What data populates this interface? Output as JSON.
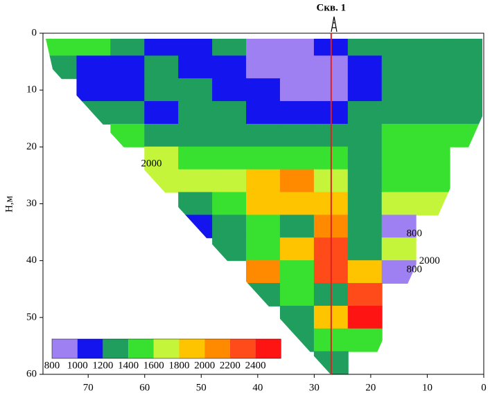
{
  "chart_data": {
    "type": "heatmap",
    "ylabel": "H,м",
    "xlim": [
      78,
      0
    ],
    "ylim": [
      0,
      60
    ],
    "y_inverted": true,
    "xticks": [
      70,
      60,
      50,
      40,
      30,
      20,
      10,
      0
    ],
    "yticks": [
      0,
      10,
      20,
      30,
      40,
      50,
      60
    ],
    "cell_size": [
      6,
      4
    ],
    "x": [
      75,
      69,
      63,
      57,
      51,
      45,
      39,
      33,
      27,
      21,
      15,
      9,
      3
    ],
    "y": [
      2,
      6,
      10,
      14,
      18,
      22,
      26,
      30,
      34,
      38,
      42,
      46,
      50,
      54,
      58
    ],
    "z": [
      [
        1450,
        1450,
        1300,
        1100,
        1100,
        1300,
        900,
        900,
        1100,
        1300,
        1300,
        1300,
        1300
      ],
      [
        1300,
        1100,
        1100,
        1300,
        1100,
        1100,
        900,
        900,
        900,
        1100,
        1300,
        1300,
        1300
      ],
      [
        null,
        1100,
        1100,
        1300,
        1300,
        1100,
        1100,
        900,
        900,
        1100,
        1300,
        1300,
        1300
      ],
      [
        null,
        1300,
        1300,
        1100,
        1300,
        1300,
        1100,
        1100,
        1100,
        1300,
        1300,
        1300,
        1300
      ],
      [
        null,
        null,
        1500,
        1300,
        1300,
        1300,
        1300,
        1300,
        1300,
        1300,
        1500,
        1500,
        1500
      ],
      [
        null,
        null,
        null,
        1700,
        1500,
        1500,
        1500,
        1500,
        1500,
        1300,
        1500,
        1500,
        null
      ],
      [
        null,
        null,
        null,
        1700,
        1700,
        1700,
        1900,
        2100,
        1700,
        1300,
        1500,
        1500,
        null
      ],
      [
        null,
        null,
        null,
        null,
        1300,
        1500,
        1900,
        1900,
        1900,
        1300,
        1700,
        1700,
        null
      ],
      [
        null,
        null,
        null,
        null,
        1100,
        1300,
        1500,
        1300,
        2100,
        1300,
        900,
        null,
        null
      ],
      [
        null,
        null,
        null,
        null,
        null,
        1300,
        1500,
        1900,
        2300,
        1300,
        1700,
        null,
        null
      ],
      [
        null,
        null,
        null,
        null,
        null,
        null,
        2100,
        1500,
        2300,
        1900,
        900,
        null,
        null
      ],
      [
        null,
        null,
        null,
        null,
        null,
        null,
        1300,
        1500,
        1300,
        2300,
        null,
        null,
        null
      ],
      [
        null,
        null,
        null,
        null,
        null,
        null,
        null,
        1300,
        1900,
        2500,
        null,
        null,
        null
      ],
      [
        null,
        null,
        null,
        null,
        null,
        null,
        null,
        1300,
        1500,
        1500,
        null,
        null,
        null
      ],
      [
        null,
        null,
        null,
        null,
        null,
        null,
        null,
        null,
        1300,
        null,
        null,
        null,
        null
      ]
    ],
    "levels": [
      800,
      1000,
      1200,
      1400,
      1600,
      1800,
      2000,
      2200,
      2400
    ],
    "colors": [
      "#9f80f2",
      "#1414ee",
      "#1f9e5e",
      "#38e030",
      "#c4f53a",
      "#ffc400",
      "#ff8a00",
      "#ff4a1a",
      "#ff1414"
    ],
    "well": {
      "label": "Скв. 1",
      "x": 27,
      "color": "#e02020"
    },
    "annotations": [
      {
        "text": "2000",
        "x": 58.8,
        "y": 23
      },
      {
        "text": "800",
        "x": 12.3,
        "y": 35.3
      },
      {
        "text": "2000",
        "x": 9.6,
        "y": 40.1
      },
      {
        "text": "800",
        "x": 12.3,
        "y": 41.6
      }
    ]
  }
}
